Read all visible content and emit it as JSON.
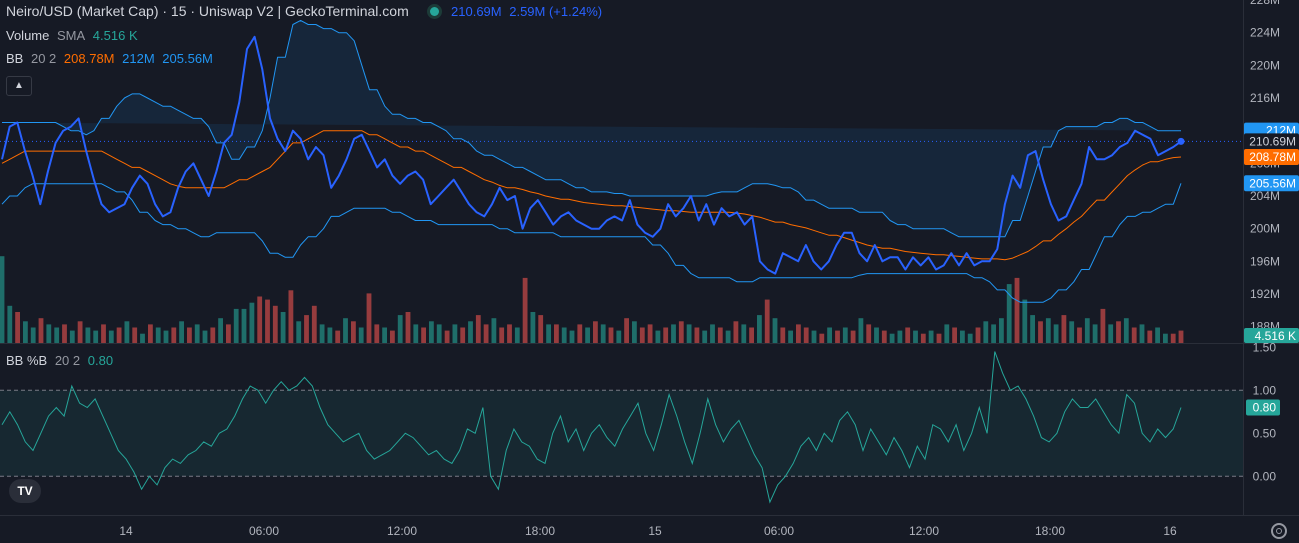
{
  "header": {
    "title": "Neiro/USD (Market Cap) · 15 · Uniswap V2 | GeckoTerminal.com",
    "price": "210.69M",
    "change": "2.59M (+1.24%)",
    "volume_label": "Volume",
    "volume_sma": "SMA",
    "volume_value": "4.516 K",
    "bb_label": "BB",
    "bb_params": "20 2",
    "bb_basis": "208.78M",
    "bb_upper": "212M",
    "bb_lower": "205.56M",
    "bbp_label": "BB %B",
    "bbp_params": "20 2",
    "bbp_value": "0.80",
    "collapse_icon": "chevron-up-icon"
  },
  "colors": {
    "background": "#161a25",
    "price_line": "#2962ff",
    "bands": "#2196f3",
    "basis": "#ff6d00",
    "vol_up": "#26a69a",
    "vol_down": "#ef5350",
    "bbp_line": "#26a69a",
    "bbp_fill": "#1b3a36"
  },
  "chart_data": [
    {
      "type": "line",
      "series": [
        {
          "name": "Price",
          "values": [
            208.5,
            212.5,
            213,
            209.5,
            206.5,
            203,
            207,
            210.5,
            212,
            212.5,
            213.5,
            209.5,
            206,
            203,
            202,
            202.5,
            203,
            205,
            206.5,
            205.5,
            203,
            201.5,
            202,
            205,
            207,
            208,
            206,
            204,
            207,
            210.5,
            211.5,
            215.5,
            222,
            223.5,
            219.5,
            213.5,
            211,
            209.5,
            212,
            211,
            208.5,
            210,
            209,
            205,
            206.5,
            208.5,
            211,
            211.5,
            209.5,
            207.5,
            208.5,
            206.5,
            205.5,
            206.5,
            207,
            206,
            203,
            204,
            205,
            206,
            204.5,
            203,
            202,
            201.5,
            203,
            205,
            203.5,
            204,
            200,
            202.5,
            203.5,
            202,
            200.5,
            201.5,
            202,
            201,
            200.5,
            200,
            200,
            201,
            201.5,
            201,
            203.5,
            200.5,
            199.5,
            199,
            200,
            203,
            201.5,
            202.5,
            204,
            201,
            203,
            200.5,
            202.5,
            201.5,
            202,
            200.5,
            201.5,
            196,
            195,
            194.5,
            197,
            196.5,
            196,
            198,
            196,
            195,
            196,
            198,
            199.5,
            199.5,
            197,
            196,
            198,
            196,
            196.5,
            196.5,
            195,
            196.5,
            195.5,
            196.5,
            195,
            195.5,
            197,
            195.5,
            197,
            195.5,
            196,
            196,
            197.5,
            203,
            206.5,
            205,
            209,
            209.5,
            206,
            203,
            201,
            201.5,
            203.5,
            205.5,
            210,
            208.5,
            208.5,
            209,
            210,
            210.5,
            212,
            211.5,
            211,
            209,
            209.5,
            210,
            210.69
          ]
        },
        {
          "name": "BB basis",
          "values": [
            208,
            208.5,
            209,
            209.5,
            209.5,
            209.5,
            209.5,
            209.5,
            209.5,
            209.5,
            209.5,
            209.5,
            209,
            208.5,
            208,
            207.5,
            207,
            206.5,
            206,
            205.5,
            205.2,
            205,
            205,
            205,
            205,
            205,
            205.5,
            206,
            206.5,
            207,
            207.5,
            208.5,
            209.5,
            210.5,
            211,
            211.5,
            212,
            212,
            212,
            212,
            212,
            211.5,
            211.5,
            211,
            210.5,
            210,
            209.5,
            209.5,
            209,
            208.5,
            208,
            207.5,
            207,
            206.5,
            206,
            205.7,
            205.3,
            205,
            204.8,
            204.5,
            204.3,
            204,
            203.8,
            203.6,
            203.4,
            203.2,
            203.1,
            203,
            202.9,
            202.8,
            202.7,
            202.6,
            202.5,
            202.4,
            202.3,
            202.2,
            202.1,
            202,
            202,
            202,
            202,
            202,
            201.9,
            201.8,
            201.6,
            201.4,
            201.1,
            200.8,
            200.5,
            200.3,
            200.1,
            199.8,
            199.5,
            199.2,
            198.9,
            198.6,
            198.3,
            198,
            197.8,
            197.6,
            197.4,
            197.2,
            197.1,
            197,
            196.9,
            196.8,
            196.7,
            196.6,
            196.5,
            196.4,
            196.3,
            196.3,
            196.2,
            196.4,
            196.8,
            197.2,
            197.8,
            198.5,
            199.3,
            200,
            200.8,
            201.5,
            202.5,
            203.5,
            204.5,
            205.5,
            206.5,
            207.2,
            207.8,
            208.2,
            208.5,
            208.7,
            208.78
          ]
        },
        {
          "name": "BB upper",
          "values": [
            213,
            213,
            213,
            213,
            213,
            213,
            212.5,
            212,
            211.5,
            212,
            213.5,
            215,
            216,
            216.5,
            216,
            215.5,
            215,
            214.5,
            214,
            213.5,
            212.5,
            210.5,
            208.5,
            208.5,
            210,
            212,
            216,
            221,
            225,
            225.5,
            225,
            224.5,
            224.5,
            224,
            223,
            220,
            217,
            215,
            214,
            213.5,
            213.5,
            213,
            212.5,
            212,
            211,
            210.5,
            209.5,
            209,
            208.5,
            208,
            207.5,
            207,
            206.5,
            206,
            206,
            205.5,
            205,
            204.5,
            204.5,
            204.3,
            204.3,
            204,
            204,
            204,
            204,
            204,
            204,
            204,
            204,
            204.3,
            204.5,
            204.5,
            205,
            205.5,
            205.5,
            205.3,
            205,
            204.5,
            203.5,
            203,
            202.5,
            202.5,
            202.5,
            202,
            202,
            202,
            201,
            200.5,
            200,
            200,
            200,
            200,
            199.5,
            199,
            199,
            199,
            199,
            199,
            201,
            204,
            207,
            210,
            212,
            212.5,
            212.5,
            212.5,
            212.5,
            213,
            213.5,
            213.5,
            213,
            212.5,
            212,
            212,
            212
          ]
        },
        {
          "name": "BB lower",
          "values": [
            203,
            204,
            205,
            205.5,
            205.5,
            205.5,
            205.5,
            205.5,
            205.5,
            205,
            204.5,
            203.5,
            202,
            201,
            200.5,
            200,
            199.5,
            199,
            199.5,
            199.5,
            199.5,
            199.5,
            198.5,
            197,
            196.5,
            198,
            199,
            200,
            201.5,
            202,
            202.5,
            202.5,
            202.5,
            202,
            201.5,
            201,
            201,
            200.5,
            200.5,
            200.5,
            200.5,
            200.5,
            200,
            199.5,
            199.5,
            199.5,
            199.5,
            199,
            199,
            199,
            199,
            199,
            199,
            199,
            199,
            198,
            197,
            195.5,
            194.5,
            194,
            194,
            194,
            193.5,
            193.5,
            194,
            194,
            194,
            194,
            194,
            194,
            194,
            194,
            194.3,
            194.5,
            194.5,
            194.5,
            194.5,
            194.5,
            194.5,
            194.5,
            194.5,
            194.5,
            194,
            193.5,
            192.5,
            191.5,
            191,
            191,
            191.5,
            192.5,
            193.5,
            195,
            197,
            199,
            200.5,
            201.5,
            202,
            202.5,
            203,
            205.56
          ]
        }
      ],
      "ylim": [
        186,
        228
      ],
      "yticks": [
        "228M",
        "224M",
        "220M",
        "216M",
        "212M",
        "208M",
        "204M",
        "200M",
        "196M",
        "192M",
        "188M"
      ],
      "price_labels": [
        {
          "label": "212M",
          "value": 212,
          "color": "#2196f3"
        },
        {
          "label": "210.69M",
          "value": 210.69,
          "color": "#161a25",
          "text_color": "#d1d4dc"
        },
        {
          "label": "208.78M",
          "value": 208.78,
          "color": "#ff6d00"
        },
        {
          "label": "205.56M",
          "value": 205.56,
          "color": "#2196f3"
        }
      ]
    },
    {
      "type": "bar",
      "name": "Volume",
      "values": [
        2.8,
        1.2,
        1,
        0.7,
        0.5,
        0.8,
        0.6,
        0.5,
        0.6,
        0.4,
        0.7,
        0.5,
        0.4,
        0.6,
        0.4,
        0.5,
        0.7,
        0.5,
        0.3,
        0.6,
        0.5,
        0.4,
        0.5,
        0.7,
        0.5,
        0.6,
        0.4,
        0.5,
        0.8,
        0.6,
        1.1,
        1.1,
        1.3,
        1.5,
        1.4,
        1.2,
        1.0,
        1.7,
        0.7,
        0.9,
        1.2,
        0.6,
        0.5,
        0.4,
        0.8,
        0.7,
        0.5,
        1.6,
        0.6,
        0.5,
        0.4,
        0.9,
        1.0,
        0.6,
        0.5,
        0.7,
        0.6,
        0.4,
        0.6,
        0.5,
        0.7,
        0.9,
        0.6,
        0.8,
        0.5,
        0.6,
        0.5,
        2.1,
        1.0,
        0.9,
        0.6,
        0.6,
        0.5,
        0.4,
        0.6,
        0.5,
        0.7,
        0.6,
        0.5,
        0.4,
        0.8,
        0.7,
        0.5,
        0.6,
        0.4,
        0.5,
        0.6,
        0.7,
        0.6,
        0.5,
        0.4,
        0.6,
        0.5,
        0.4,
        0.7,
        0.6,
        0.5,
        0.9,
        1.4,
        0.8,
        0.5,
        0.4,
        0.6,
        0.5,
        0.4,
        0.3,
        0.5,
        0.4,
        0.5,
        0.4,
        0.8,
        0.6,
        0.5,
        0.4,
        0.3,
        0.4,
        0.5,
        0.4,
        0.3,
        0.4,
        0.3,
        0.6,
        0.5,
        0.4,
        0.3,
        0.5,
        0.7,
        0.6,
        0.8,
        1.9,
        2.1,
        1.4,
        0.9,
        0.7,
        0.8,
        0.6,
        0.9,
        0.7,
        0.5,
        0.8,
        0.6,
        1.1,
        0.6,
        0.7,
        0.8,
        0.5,
        0.6,
        0.4,
        0.5,
        0.3,
        0.3,
        0.4
      ],
      "up": [
        1,
        1,
        0,
        1,
        1,
        0,
        1,
        1,
        0,
        1,
        0,
        1,
        1,
        0,
        1,
        0,
        1,
        0,
        1,
        0,
        1,
        1,
        0,
        1,
        0,
        1,
        1,
        0,
        1,
        0,
        1,
        1,
        1,
        0,
        0,
        0,
        1,
        0,
        1,
        0,
        0,
        1,
        1,
        0,
        1,
        0,
        1,
        0,
        0,
        1,
        0,
        1,
        0,
        1,
        0,
        1,
        1,
        0,
        1,
        0,
        1,
        0,
        0,
        1,
        0,
        0,
        1,
        0,
        1,
        0,
        1,
        0,
        1,
        1,
        0,
        1,
        0,
        1,
        0,
        1,
        0,
        1,
        0,
        0,
        1,
        0,
        1,
        0,
        1,
        0,
        1,
        1,
        0,
        1,
        0,
        1,
        0,
        1,
        0,
        1,
        0,
        1,
        0,
        0,
        1,
        0,
        1,
        0,
        1,
        0,
        1,
        0,
        1,
        0,
        1,
        1,
        0,
        1,
        0,
        1,
        0,
        1,
        0,
        1,
        1,
        0,
        1,
        1,
        1,
        1,
        0,
        1,
        1,
        0,
        1,
        1,
        0,
        1,
        0,
        1,
        1,
        0,
        1,
        0,
        1,
        0,
        1,
        0,
        1,
        1
      ]
    },
    {
      "type": "line",
      "name": "BB %B",
      "values": [
        0.6,
        0.75,
        0.6,
        0.4,
        0.3,
        0.5,
        0.7,
        0.8,
        0.7,
        1.05,
        0.85,
        0.8,
        0.9,
        0.7,
        0.5,
        0.3,
        0.2,
        0.05,
        -0.15,
        0.0,
        -0.1,
        0.1,
        0.2,
        0.15,
        0.25,
        0.3,
        0.4,
        0.35,
        0.5,
        0.55,
        0.7,
        0.9,
        1.05,
        1.0,
        0.85,
        1.0,
        1.1,
        1.0,
        1.05,
        1.15,
        1.05,
        0.8,
        0.6,
        0.5,
        0.4,
        0.45,
        0.5,
        0.3,
        0.2,
        0.25,
        0.3,
        0.4,
        0.5,
        0.45,
        0.35,
        0.25,
        0.3,
        0.2,
        0.15,
        0.3,
        0.55,
        0.5,
        0.8,
        0.0,
        -0.15,
        0.3,
        0.55,
        0.4,
        0.35,
        0.2,
        0.15,
        0.5,
        0.7,
        0.4,
        0.55,
        0.3,
        0.5,
        0.6,
        0.45,
        0.35,
        0.55,
        0.7,
        0.85,
        0.5,
        0.3,
        0.6,
        0.95,
        0.7,
        0.4,
        0.15,
        0.5,
        0.9,
        0.6,
        0.4,
        0.55,
        0.65,
        0.45,
        0.25,
        0.1,
        -0.3,
        -0.1,
        0.0,
        0.15,
        0.35,
        0.45,
        0.3,
        0.5,
        0.4,
        0.65,
        0.75,
        0.6,
        0.3,
        0.55,
        0.4,
        0.25,
        0.45,
        0.3,
        0.1,
        0.35,
        0.2,
        0.6,
        0.55,
        0.4,
        0.6,
        0.3,
        0.5,
        0.8,
        0.5,
        1.45,
        1.2,
        1.0,
        1.05,
        0.9,
        0.7,
        0.45,
        0.4,
        0.5,
        0.75,
        0.9,
        0.8,
        0.8,
        0.9,
        0.75,
        0.6,
        0.5,
        0.95,
        0.85,
        0.5,
        0.4,
        0.55,
        0.45,
        0.55,
        0.8
      ],
      "ylim": [
        -0.45,
        1.55
      ],
      "yticks": [
        "1.50",
        "1.00",
        "0.50",
        "0.00"
      ],
      "reference_lines": [
        1.0,
        0.0
      ]
    }
  ],
  "x_axis": {
    "ticks": [
      "14",
      "06:00",
      "12:00",
      "18:00",
      "15",
      "06:00",
      "12:00",
      "18:00",
      "16"
    ],
    "tick_index": [
      8,
      34,
      58,
      82,
      107,
      132,
      157,
      180,
      200
    ]
  },
  "icons": {
    "logo": "tradingview-logo-icon",
    "settings": "gear-icon"
  },
  "logo_text": "TV"
}
